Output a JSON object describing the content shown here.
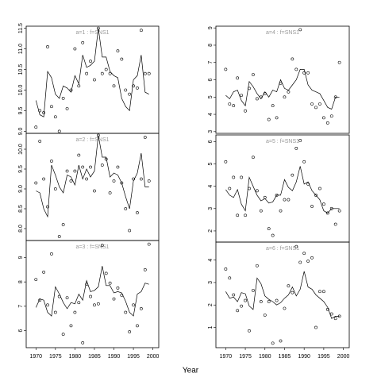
{
  "xlabel": "Year",
  "chart_data": [
    {
      "type": "scatter",
      "title": "a=1 : f=SNS1",
      "xlim": [
        1967.5,
        2001.5
      ],
      "ylim": [
        8.95,
        11.55
      ],
      "yticks": [
        {
          "value": 9,
          "label": "9.0"
        },
        9.5,
        {
          "value": 10,
          "label": "10.0"
        },
        10.5,
        {
          "value": 11,
          "label": "11.0"
        },
        11.5
      ],
      "x": [
        1970,
        1971,
        1972,
        1973,
        1974,
        1975,
        1976,
        1977,
        1978,
        1979,
        1980,
        1981,
        1982,
        1983,
        1984,
        1985,
        1986,
        1987,
        1988,
        1989,
        1990,
        1991,
        1992,
        1993,
        1994,
        1995,
        1996,
        1997,
        1998,
        1999
      ],
      "series": [
        {
          "style": "points",
          "color": "#000000",
          "values": [
            9.1,
            9.5,
            9.45,
            11.05,
            9.6,
            9.35,
            9.0,
            9.8,
            9.55,
            10.0,
            11.0,
            10.1,
            11.15,
            10.4,
            10.7,
            10.25,
            11.5,
            10.4,
            10.5,
            10.4,
            10.1,
            10.95,
            10.75,
            10.0,
            9.9,
            10.1,
            10.05,
            11.45,
            10.4,
            10.4
          ]
        },
        {
          "style": "line",
          "color": "#000000",
          "values": [
            9.75,
            9.4,
            9.35,
            10.45,
            10.3,
            9.9,
            9.8,
            10.1,
            10.05,
            9.95,
            10.35,
            10.15,
            10.85,
            10.55,
            10.6,
            10.7,
            11.5,
            10.8,
            10.8,
            10.45,
            10.35,
            10.3,
            9.8,
            9.6,
            9.5,
            10.25,
            10.35,
            10.85,
            9.95,
            9.9
          ]
        }
      ]
    },
    {
      "type": "scatter",
      "title": "a=2 : f=SNS1",
      "xlim": [
        1967.5,
        2001.5
      ],
      "ylim": [
        7.7,
        10.4
      ],
      "yticks": [
        {
          "value": 8,
          "label": "8.0"
        },
        8.5,
        {
          "value": 9,
          "label": "9.0"
        },
        9.5,
        {
          "value": 10,
          "label": "10.0"
        }
      ],
      "x": [
        1970,
        1971,
        1972,
        1973,
        1974,
        1975,
        1976,
        1977,
        1978,
        1979,
        1980,
        1981,
        1982,
        1983,
        1984,
        1985,
        1986,
        1987,
        1988,
        1989,
        1990,
        1991,
        1992,
        1993,
        1994,
        1995,
        1996,
        1997,
        1998,
        1999
      ],
      "series": [
        {
          "style": "points",
          "color": "#000000",
          "values": [
            9.15,
            10.2,
            9.25,
            8.55,
            9.7,
            9.0,
            7.8,
            8.1,
            9.45,
            9.2,
            9.45,
            9.85,
            9.55,
            9.25,
            9.55,
            8.95,
            10.35,
            9.6,
            9.75,
            8.9,
            9.2,
            9.55,
            9.15,
            8.5,
            7.95,
            9.25,
            8.4,
            9.25,
            10.3,
            9.2
          ]
        },
        {
          "style": "line",
          "color": "#000000",
          "values": [
            8.95,
            8.9,
            8.5,
            8.3,
            9.6,
            9.35,
            9.05,
            8.9,
            9.35,
            9.3,
            9.1,
            9.6,
            9.25,
            9.5,
            9.3,
            9.45,
            10.35,
            9.8,
            9.8,
            9.3,
            9.4,
            9.35,
            9.15,
            8.8,
            8.5,
            9.2,
            9.4,
            9.9,
            9.05,
            9.05
          ]
        }
      ]
    },
    {
      "type": "scatter",
      "title": "a=3 : f=SNS1",
      "xlim": [
        1967.5,
        2001.5
      ],
      "ylim": [
        5.3,
        9.7
      ],
      "yticks": [
        6,
        7,
        8,
        9
      ],
      "xticks": [
        1970,
        1975,
        1980,
        1985,
        1990,
        1995,
        2000
      ],
      "x": [
        1970,
        1971,
        1972,
        1973,
        1974,
        1975,
        1976,
        1977,
        1978,
        1979,
        1980,
        1981,
        1982,
        1983,
        1984,
        1985,
        1986,
        1987,
        1988,
        1989,
        1990,
        1991,
        1992,
        1993,
        1994,
        1995,
        1996,
        1997,
        1998,
        1999
      ],
      "series": [
        {
          "style": "points",
          "color": "#000000",
          "values": [
            8.1,
            7.25,
            8.4,
            7.05,
            9.15,
            6.75,
            7.4,
            5.85,
            7.35,
            6.2,
            6.75,
            7.15,
            5.5,
            7.9,
            7.4,
            7.05,
            7.1,
            9.5,
            8.35,
            7.95,
            7.3,
            7.75,
            7.45,
            6.75,
            5.95,
            7.05,
            6.2,
            6.9,
            8.5,
            9.55
          ]
        },
        {
          "style": "line",
          "color": "#000000",
          "values": [
            6.95,
            7.3,
            7.25,
            6.75,
            6.6,
            7.8,
            7.5,
            7.15,
            6.9,
            7.15,
            7.1,
            7.5,
            7.25,
            8.05,
            7.6,
            7.65,
            7.8,
            8.65,
            7.85,
            7.85,
            7.55,
            7.6,
            7.55,
            7.2,
            6.75,
            6.6,
            7.5,
            7.6,
            7.95,
            7.9
          ]
        }
      ]
    },
    {
      "type": "scatter",
      "title": "a=4 : f=SNS1",
      "xlim": [
        1967.5,
        2001.5
      ],
      "ylim": [
        2.9,
        9.1
      ],
      "yticks": [
        3,
        4,
        5,
        6,
        7,
        8,
        9
      ],
      "x": [
        1970,
        1971,
        1972,
        1973,
        1974,
        1975,
        1976,
        1977,
        1978,
        1979,
        1980,
        1981,
        1982,
        1983,
        1984,
        1985,
        1986,
        1987,
        1988,
        1989,
        1990,
        1991,
        1992,
        1993,
        1994,
        1995,
        1996,
        1997,
        1998,
        1999
      ],
      "series": [
        {
          "style": "points",
          "color": "#000000",
          "values": [
            6.6,
            4.6,
            4.5,
            6.1,
            5.1,
            4.2,
            5.5,
            6.3,
            4.9,
            5.0,
            5.2,
            3.7,
            4.5,
            3.8,
            5.8,
            5.0,
            5.3,
            7.2,
            6.6,
            8.9,
            6.4,
            6.4,
            4.6,
            4.4,
            4.6,
            3.8,
            3.5,
            3.9,
            5.0,
            7.0
          ]
        },
        {
          "style": "line",
          "color": "#000000",
          "values": [
            5.1,
            4.9,
            5.3,
            5.4,
            4.8,
            4.5,
            5.9,
            5.6,
            5.2,
            4.9,
            5.3,
            5.0,
            5.4,
            5.3,
            6.0,
            5.5,
            5.4,
            5.7,
            6.0,
            6.6,
            6.6,
            5.7,
            5.4,
            5.3,
            5.2,
            4.8,
            4.4,
            4.3,
            5.0,
            5.0
          ]
        }
      ]
    },
    {
      "type": "scatter",
      "title": "a=5 : f=SNS1",
      "xlim": [
        1967.5,
        2001.5
      ],
      "ylim": [
        1.5,
        6.3
      ],
      "yticks": [
        2,
        3,
        4,
        5,
        6
      ],
      "x": [
        1970,
        1971,
        1972,
        1973,
        1974,
        1975,
        1976,
        1977,
        1978,
        1979,
        1980,
        1981,
        1982,
        1983,
        1984,
        1985,
        1986,
        1987,
        1988,
        1989,
        1990,
        1991,
        1992,
        1993,
        1994,
        1995,
        1996,
        1997,
        1998,
        1999
      ],
      "series": [
        {
          "style": "points",
          "color": "#000000",
          "values": [
            5.1,
            3.9,
            4.4,
            2.7,
            4.4,
            2.7,
            3.9,
            5.3,
            3.8,
            2.9,
            3.5,
            2.1,
            1.8,
            3.6,
            2.9,
            3.4,
            3.4,
            4.5,
            5.7,
            6.05,
            5.1,
            4.1,
            3.1,
            3.6,
            3.9,
            3.2,
            2.8,
            3.0,
            2.3,
            2.9
          ]
        },
        {
          "style": "line",
          "color": "#000000",
          "values": [
            3.85,
            3.6,
            3.5,
            3.85,
            3.2,
            2.9,
            4.4,
            4.0,
            3.6,
            3.35,
            3.45,
            3.25,
            3.3,
            3.6,
            3.6,
            4.3,
            3.95,
            3.8,
            4.2,
            4.9,
            4.1,
            4.2,
            3.8,
            3.6,
            3.4,
            2.9,
            2.8,
            3.0,
            3.0,
            3.0
          ]
        }
      ]
    },
    {
      "type": "scatter",
      "title": "a=6 : f=SNS1",
      "xlim": [
        1967.5,
        2001.5
      ],
      "ylim": [
        0.1,
        4.8
      ],
      "yticks": [
        1,
        2,
        3,
        4
      ],
      "xticks": [
        1970,
        1975,
        1980,
        1985,
        1990,
        1995,
        2000
      ],
      "x": [
        1970,
        1971,
        1972,
        1973,
        1974,
        1975,
        1976,
        1977,
        1978,
        1979,
        1980,
        1981,
        1982,
        1983,
        1984,
        1985,
        1986,
        1987,
        1988,
        1989,
        1990,
        1991,
        1992,
        1993,
        1994,
        1995,
        1996,
        1997,
        1998,
        1999
      ],
      "series": [
        {
          "style": "points",
          "color": "#000000",
          "values": [
            3.6,
            3.2,
            2.45,
            1.75,
            1.95,
            2.2,
            0.85,
            2.65,
            3.75,
            2.15,
            1.55,
            2.15,
            0.3,
            2.2,
            0.4,
            1.85,
            2.85,
            2.55,
            4.6,
            3.9,
            4.3,
            3.95,
            4.1,
            1.0,
            2.6,
            2.6,
            1.8,
            1.6,
            1.4,
            1.5
          ]
        },
        {
          "style": "line",
          "color": "#000000",
          "values": [
            2.6,
            2.3,
            2.35,
            2.15,
            2.55,
            2.5,
            1.95,
            1.8,
            3.2,
            2.95,
            2.4,
            2.25,
            2.15,
            2.0,
            2.1,
            2.3,
            2.45,
            2.8,
            2.4,
            2.7,
            3.5,
            2.8,
            2.7,
            2.45,
            2.3,
            2.15,
            1.9,
            1.4,
            1.5,
            1.5
          ]
        }
      ]
    }
  ]
}
